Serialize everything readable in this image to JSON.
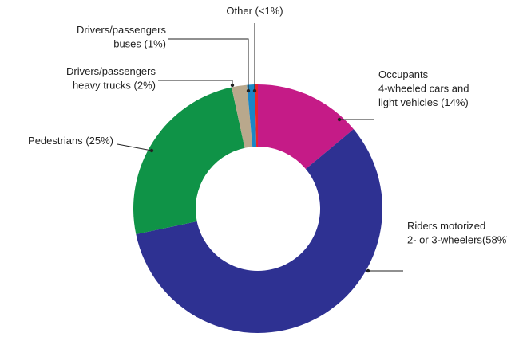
{
  "chart_data": {
    "type": "donut",
    "categories": [
      [
        "Occupants",
        "4-wheeled cars and",
        "light vehicles"
      ],
      [
        "Riders motorized",
        "2- or 3-wheelers",
        ""
      ],
      [
        "Pedestrians"
      ],
      [
        "Drivers/passengers",
        "heavy trucks"
      ],
      [
        "Drivers/passengers",
        "buses"
      ],
      [
        "Other"
      ]
    ],
    "values": [
      14,
      58,
      25,
      2,
      1,
      0.4
    ],
    "value_labels": [
      "(14%)",
      "(58%)",
      "(25%)",
      "(2%)",
      "(1%)",
      "(<1%)"
    ],
    "colors": [
      "#c51b87",
      "#2e3192",
      "#0f9347",
      "#b9a88c",
      "#1a86c6",
      "#e8232a"
    ]
  }
}
